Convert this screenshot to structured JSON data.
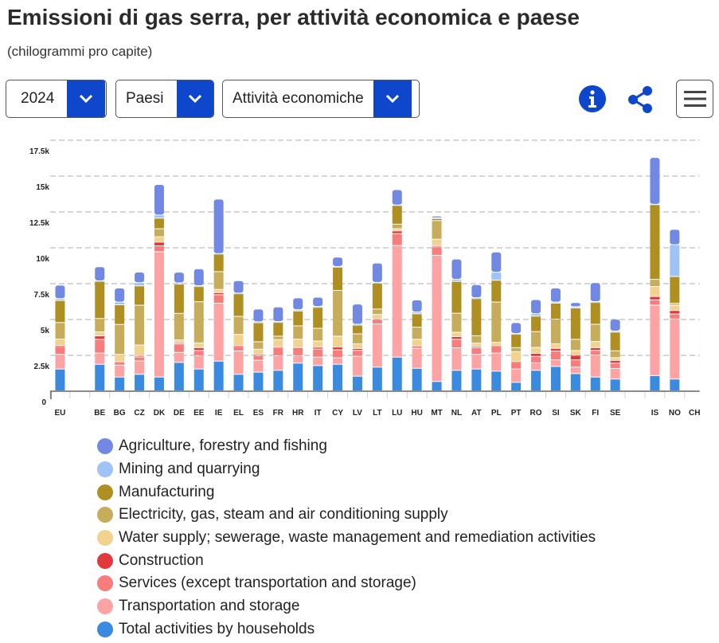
{
  "header": {
    "title": "Emissioni di gas serra, per attività economica e paese",
    "subtitle": "(chilogrammi pro capite)"
  },
  "controls": {
    "year": "2024",
    "geo": "Paesi",
    "activity": "Attività economiche"
  },
  "icons": {
    "info": "info-icon",
    "share": "share-icon",
    "menu": "hamburger-menu-icon",
    "dropdown": "chevron-down-icon"
  },
  "chart_data": {
    "type": "bar",
    "stacked": true,
    "title": "",
    "xlabel": "",
    "ylabel": "",
    "ylim": [
      0,
      17500
    ],
    "grid": true,
    "yticks": [
      0,
      2500,
      5000,
      7500,
      10000,
      12500,
      15000,
      17500
    ],
    "ytick_labels": [
      "0",
      "2.5k",
      "5k",
      "7.5k",
      "10k",
      "12.5k",
      "15k",
      "17.5k"
    ],
    "categories": [
      "EU",
      "",
      "BE",
      "BG",
      "CZ",
      "DK",
      "DE",
      "EE",
      "IE",
      "EL",
      "ES",
      "FR",
      "HR",
      "IT",
      "CY",
      "LV",
      "LT",
      "LU",
      "HU",
      "MT",
      "NL",
      "AT",
      "PL",
      "PT",
      "RO",
      "SI",
      "SK",
      "FI",
      "SE",
      "",
      "IS",
      "NO",
      "CH"
    ],
    "legend_position": "bottom",
    "series": [
      {
        "name": "Total activities by households",
        "color": "#3a8ae0",
        "values": [
          1520,
          null,
          1850,
          960,
          1150,
          960,
          1980,
          1520,
          2070,
          1150,
          1300,
          1430,
          1930,
          1760,
          1850,
          1020,
          1650,
          2350,
          1570,
          650,
          1430,
          1520,
          1370,
          590,
          1430,
          1700,
          1200,
          960,
          820,
          null,
          1060,
          820,
          null
        ]
      },
      {
        "name": "Transportation and storage",
        "color": "#fda3a3",
        "values": [
          1020,
          null,
          780,
          830,
          930,
          8740,
          700,
          930,
          4040,
          1630,
          830,
          1020,
          520,
          590,
          450,
          1390,
          3020,
          7780,
          1390,
          8800,
          1570,
          1020,
          1260,
          930,
          520,
          460,
          460,
          1540,
          740,
          null,
          4910,
          4190,
          null
        ]
      },
      {
        "name": "Services (except transportation and storage)",
        "color": "#f77c7c",
        "values": [
          560,
          null,
          960,
          190,
          280,
          410,
          590,
          370,
          590,
          320,
          320,
          560,
          520,
          560,
          560,
          410,
          280,
          830,
          130,
          590,
          590,
          470,
          470,
          470,
          450,
          610,
          500,
          320,
          370,
          null,
          370,
          350,
          null
        ]
      },
      {
        "name": "Construction",
        "color": "#e03a3e",
        "values": [
          50,
          null,
          240,
          40,
          90,
          260,
          90,
          190,
          150,
          40,
          80,
          60,
          40,
          130,
          190,
          130,
          60,
          190,
          40,
          80,
          190,
          90,
          40,
          40,
          210,
          190,
          320,
          190,
          190,
          null,
          240,
          240,
          null
        ]
      },
      {
        "name": "Water supply; sewerage, waste management and remediation activities",
        "color": "#f1d28f",
        "values": [
          460,
          null,
          280,
          520,
          740,
          370,
          190,
          330,
          220,
          790,
          370,
          500,
          590,
          430,
          760,
          330,
          320,
          150,
          460,
          450,
          300,
          220,
          240,
          700,
          410,
          320,
          330,
          430,
          190,
          null,
          690,
          370,
          null
        ]
      },
      {
        "name": "Electricity, gas, steam and air conditioning supply",
        "color": "#c7ad5b",
        "values": [
          1150,
          null,
          930,
          2090,
          2780,
          560,
          1850,
          2870,
          1240,
          1260,
          520,
          240,
          930,
          890,
          3190,
          690,
          370,
          320,
          850,
          1300,
          1330,
          520,
          2810,
          280,
          1110,
          1720,
          780,
          1200,
          480,
          null,
          500,
          130,
          null
        ]
      },
      {
        "name": "Manufacturing",
        "color": "#b08f22",
        "values": [
          1540,
          null,
          2590,
          1370,
          1350,
          740,
          2040,
          1060,
          1220,
          1580,
          1330,
          960,
          1040,
          1460,
          1610,
          610,
          1800,
          1300,
          930,
          130,
          2220,
          2590,
          1520,
          930,
          1080,
          1110,
          2190,
          1520,
          1300,
          null,
          5200,
          1870,
          null
        ]
      },
      {
        "name": "Mining and quarrying",
        "color": "#a0c3f7",
        "values": [
          130,
          null,
          40,
          190,
          220,
          220,
          90,
          60,
          40,
          40,
          60,
          60,
          90,
          60,
          60,
          60,
          60,
          40,
          130,
          60,
          150,
          60,
          560,
          60,
          170,
          80,
          90,
          60,
          80,
          null,
          40,
          2220,
          null
        ]
      },
      {
        "name": "Agriculture, forestry and fishing",
        "color": "#7189e3",
        "values": [
          940,
          null,
          980,
          980,
          740,
          2130,
          740,
          1180,
          3800,
          870,
          890,
          1020,
          820,
          650,
          650,
          1410,
          1350,
          1070,
          840,
          130,
          1410,
          910,
          1410,
          760,
          980,
          980,
          280,
          1320,
          820,
          null,
          3260,
          1070,
          null
        ]
      }
    ]
  }
}
